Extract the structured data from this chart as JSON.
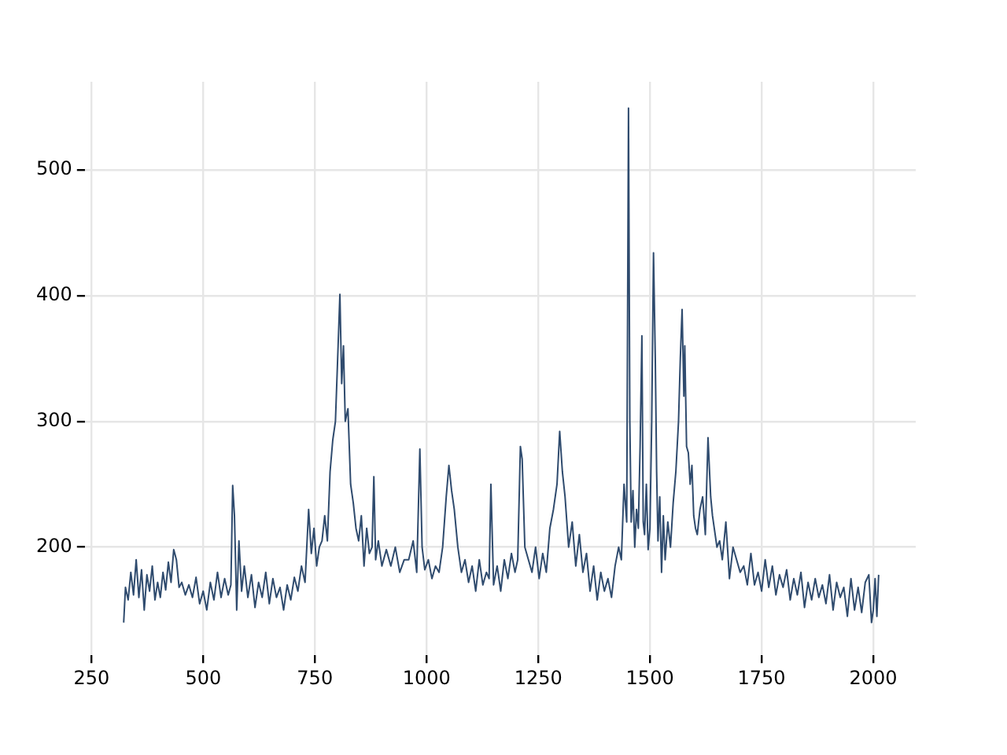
{
  "chart_data": {
    "type": "line",
    "x": [
      322,
      326,
      332,
      338,
      344,
      350,
      356,
      362,
      368,
      374,
      380,
      386,
      392,
      398,
      404,
      410,
      416,
      422,
      428,
      434,
      440,
      446,
      452,
      460,
      468,
      476,
      484,
      492,
      500,
      508,
      516,
      524,
      532,
      540,
      548,
      556,
      562,
      566,
      570,
      575,
      580,
      586,
      592,
      600,
      608,
      616,
      624,
      632,
      640,
      648,
      656,
      664,
      672,
      680,
      688,
      696,
      704,
      712,
      720,
      728,
      736,
      742,
      748,
      754,
      760,
      766,
      772,
      778,
      784,
      790,
      796,
      802,
      806,
      810,
      814,
      818,
      824,
      830,
      836,
      842,
      848,
      854,
      860,
      866,
      872,
      878,
      882,
      886,
      892,
      900,
      910,
      920,
      930,
      940,
      950,
      960,
      970,
      978,
      985,
      990,
      996,
      1004,
      1012,
      1020,
      1028,
      1036,
      1044,
      1050,
      1056,
      1062,
      1070,
      1078,
      1086,
      1094,
      1102,
      1110,
      1118,
      1126,
      1134,
      1140,
      1144,
      1150,
      1158,
      1166,
      1174,
      1182,
      1190,
      1198,
      1204,
      1210,
      1214,
      1220,
      1228,
      1236,
      1244,
      1252,
      1260,
      1268,
      1276,
      1284,
      1292,
      1298,
      1304,
      1310,
      1318,
      1326,
      1334,
      1342,
      1350,
      1358,
      1366,
      1374,
      1382,
      1390,
      1398,
      1406,
      1414,
      1422,
      1430,
      1436,
      1442,
      1448,
      1452,
      1455,
      1458,
      1462,
      1466,
      1470,
      1474,
      1478,
      1482,
      1485,
      1488,
      1492,
      1496,
      1500,
      1504,
      1508,
      1512,
      1515,
      1518,
      1522,
      1526,
      1530,
      1534,
      1540,
      1546,
      1552,
      1558,
      1564,
      1568,
      1572,
      1576,
      1578,
      1582,
      1586,
      1590,
      1594,
      1598,
      1602,
      1606,
      1612,
      1618,
      1624,
      1630,
      1636,
      1640,
      1644,
      1650,
      1656,
      1662,
      1670,
      1678,
      1686,
      1694,
      1702,
      1710,
      1718,
      1726,
      1734,
      1742,
      1750,
      1758,
      1766,
      1774,
      1782,
      1790,
      1798,
      1806,
      1814,
      1822,
      1830,
      1838,
      1846,
      1854,
      1862,
      1870,
      1878,
      1886,
      1894,
      1902,
      1910,
      1918,
      1926,
      1934,
      1942,
      1950,
      1958,
      1966,
      1974,
      1982,
      1990,
      1996,
      2000,
      2004,
      2008,
      2012
    ],
    "values": [
      140,
      168,
      158,
      180,
      162,
      190,
      160,
      182,
      150,
      178,
      165,
      185,
      158,
      172,
      160,
      180,
      166,
      188,
      172,
      198,
      190,
      168,
      172,
      162,
      170,
      160,
      176,
      155,
      165,
      150,
      172,
      158,
      180,
      160,
      175,
      162,
      170,
      249,
      225,
      150,
      205,
      165,
      185,
      160,
      178,
      152,
      172,
      160,
      180,
      155,
      175,
      160,
      168,
      150,
      170,
      158,
      176,
      165,
      185,
      172,
      230,
      195,
      215,
      185,
      200,
      205,
      225,
      205,
      260,
      285,
      300,
      360,
      401,
      330,
      360,
      300,
      310,
      250,
      235,
      215,
      205,
      225,
      185,
      215,
      195,
      200,
      256,
      190,
      205,
      185,
      198,
      185,
      200,
      180,
      190,
      190,
      205,
      180,
      278,
      200,
      182,
      190,
      175,
      185,
      180,
      200,
      240,
      265,
      245,
      230,
      200,
      180,
      190,
      172,
      185,
      165,
      190,
      170,
      180,
      175,
      250,
      170,
      185,
      165,
      190,
      175,
      195,
      180,
      190,
      280,
      270,
      200,
      190,
      180,
      200,
      175,
      195,
      180,
      215,
      230,
      250,
      292,
      260,
      240,
      200,
      220,
      185,
      210,
      180,
      195,
      165,
      185,
      158,
      180,
      165,
      175,
      160,
      185,
      200,
      190,
      250,
      220,
      549,
      300,
      220,
      245,
      200,
      230,
      215,
      280,
      368,
      220,
      210,
      250,
      198,
      215,
      300,
      434,
      350,
      260,
      205,
      240,
      180,
      225,
      190,
      220,
      200,
      235,
      260,
      300,
      350,
      389,
      320,
      360,
      280,
      275,
      250,
      265,
      225,
      215,
      210,
      230,
      240,
      210,
      287,
      240,
      225,
      215,
      200,
      205,
      190,
      220,
      175,
      200,
      190,
      180,
      185,
      170,
      195,
      170,
      180,
      165,
      190,
      168,
      185,
      162,
      178,
      168,
      182,
      158,
      175,
      162,
      180,
      152,
      172,
      158,
      175,
      160,
      170,
      155,
      178,
      150,
      172,
      160,
      168,
      145,
      175,
      150,
      168,
      148,
      172,
      178,
      140,
      150,
      175,
      145,
      178
    ],
    "color": "#2f4b6e",
    "xlim": [
      235,
      2095
    ],
    "ylim": [
      114,
      570
    ],
    "xticks": [
      250,
      500,
      750,
      1000,
      1250,
      1500,
      1750,
      2000
    ],
    "yticks": [
      200,
      300,
      400,
      500
    ],
    "grid": true,
    "legend": false,
    "marker": "none",
    "line_style": "solid"
  }
}
